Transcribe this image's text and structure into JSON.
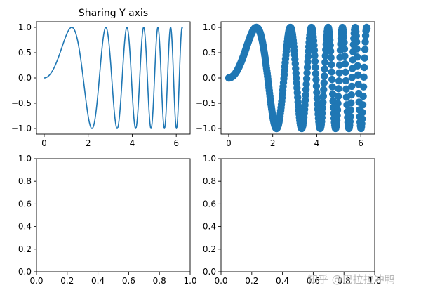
{
  "figure": {
    "watermark": "知乎 @巴拉拉冲鸭"
  },
  "chart_data": [
    {
      "type": "line",
      "title": "Sharing Y axis",
      "function": "y = sin(x^2)",
      "xlim": [
        0,
        6.283
      ],
      "ylim": [
        -1.0,
        1.0
      ],
      "x_ticks": [
        "0",
        "2",
        "4",
        "6"
      ],
      "y_ticks": [
        "1.0",
        "0.5",
        "0.0",
        "−0.5",
        "−1.0"
      ],
      "color": "#1f77b4",
      "grid": false
    },
    {
      "type": "scatter",
      "title": "",
      "function": "y = sin(x^2)",
      "xlim": [
        0,
        6.283
      ],
      "ylim": [
        -1.0,
        1.0
      ],
      "x_ticks": [
        "0",
        "2",
        "4",
        "6"
      ],
      "y_ticks": [
        "1.0",
        "0.5",
        "0.0",
        "−0.5",
        "−1.0"
      ],
      "color": "#1f77b4",
      "grid": false
    },
    {
      "type": "line",
      "title": "",
      "empty": true,
      "xlim": [
        0,
        1
      ],
      "ylim": [
        0,
        1
      ],
      "x_ticks": [
        "0.0",
        "0.2",
        "0.4",
        "0.6",
        "0.8",
        "1.0"
      ],
      "y_ticks": [
        "0.0",
        "0.2",
        "0.4",
        "0.6",
        "0.8",
        "1.0"
      ],
      "grid": false
    },
    {
      "type": "line",
      "title": "",
      "empty": true,
      "xlim": [
        0,
        1
      ],
      "ylim": [
        0,
        1
      ],
      "x_ticks": [
        "0.0",
        "0.2",
        "0.4",
        "0.6",
        "0.8",
        "1.0"
      ],
      "y_ticks": [
        "0.0",
        "0.2",
        "0.4",
        "0.6",
        "0.8",
        "1.0"
      ],
      "grid": false
    }
  ]
}
